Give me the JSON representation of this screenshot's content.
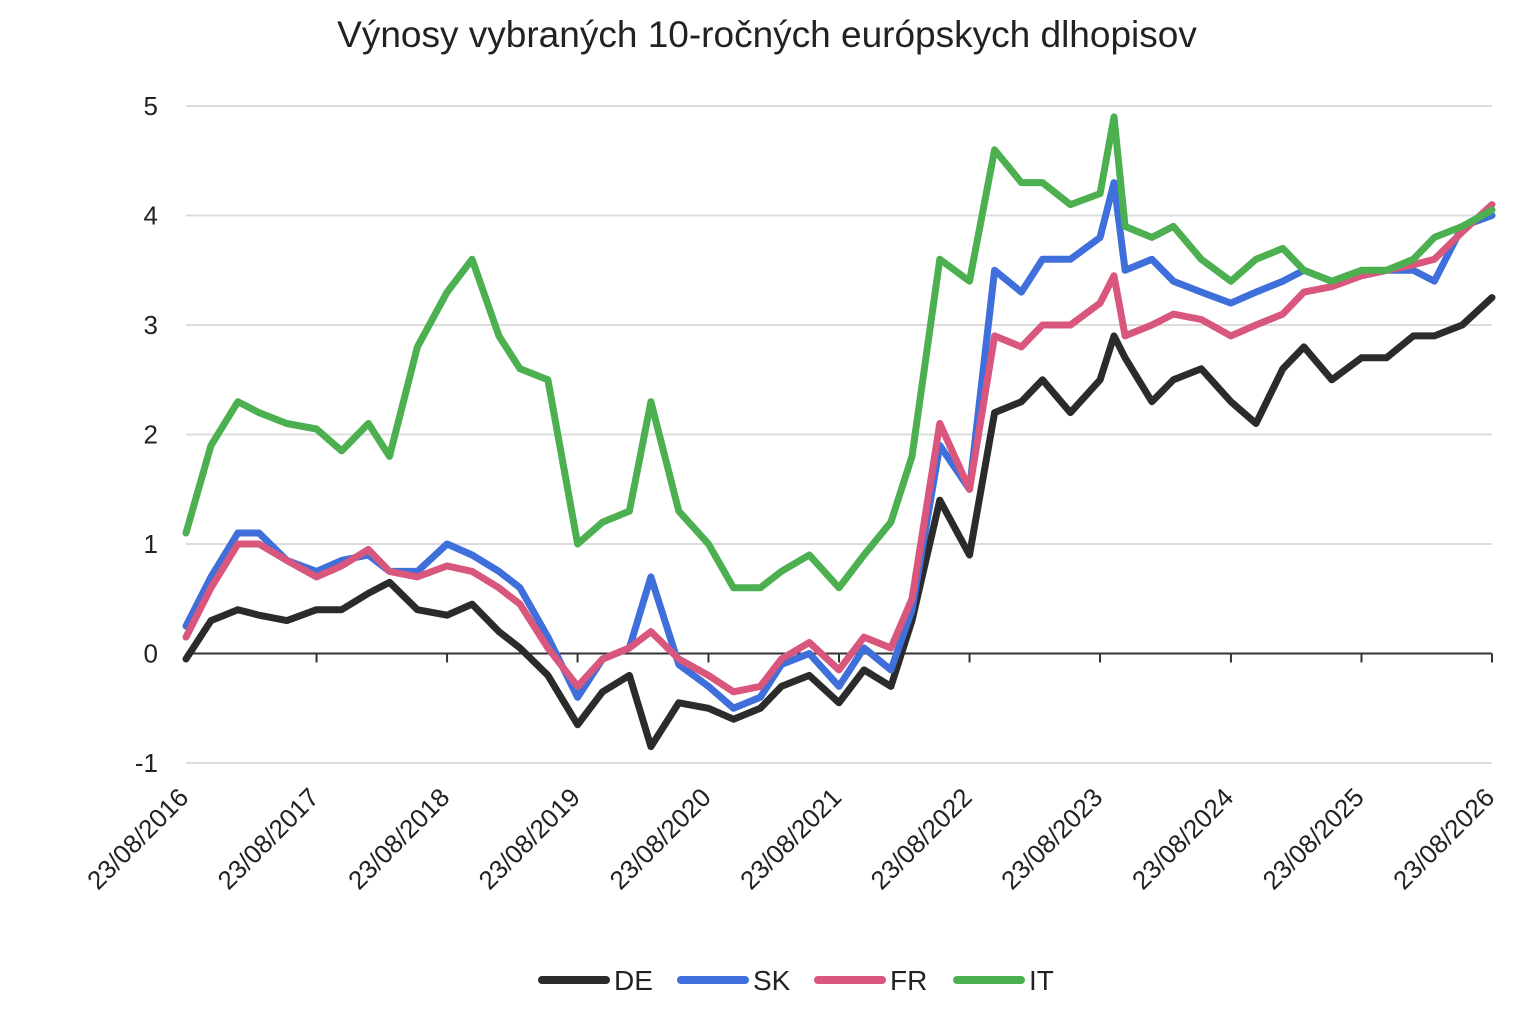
{
  "chart_data": {
    "type": "line",
    "title": "Výnosy vybraných 10-ročných európskych dlhopisov",
    "xlabel": "",
    "ylabel": "",
    "ylim": [
      -1,
      5
    ],
    "yticks": [
      -1,
      0,
      1,
      2,
      3,
      4,
      5
    ],
    "xticks": [
      "23/08/2016",
      "23/08/2017",
      "23/08/2018",
      "23/08/2019",
      "23/08/2020",
      "23/08/2021",
      "23/08/2022",
      "23/08/2023",
      "23/08/2024",
      "23/08/2025",
      "23/08/2026"
    ],
    "grid": "horizontal",
    "legend_position": "bottom",
    "x": [
      "2016-08-23",
      "2016-11-01",
      "2017-01-15",
      "2017-03-15",
      "2017-06-01",
      "2017-08-23",
      "2017-11-01",
      "2018-01-15",
      "2018-03-15",
      "2018-06-01",
      "2018-08-23",
      "2018-11-01",
      "2019-01-15",
      "2019-03-15",
      "2019-06-01",
      "2019-08-23",
      "2019-11-01",
      "2020-01-15",
      "2020-03-15",
      "2020-06-01",
      "2020-08-23",
      "2020-11-01",
      "2021-01-15",
      "2021-03-15",
      "2021-06-01",
      "2021-08-23",
      "2021-11-01",
      "2022-01-15",
      "2022-03-15",
      "2022-06-01",
      "2022-08-23",
      "2022-11-01",
      "2023-01-15",
      "2023-03-15",
      "2023-06-01",
      "2023-08-23",
      "2023-10-01",
      "2023-11-01",
      "2024-01-15",
      "2024-03-15",
      "2024-06-01",
      "2024-08-23",
      "2024-11-01",
      "2025-01-15",
      "2025-03-15",
      "2025-06-01",
      "2025-08-23",
      "2025-11-01",
      "2026-01-15",
      "2026-03-15",
      "2026-06-01",
      "2026-08-23"
    ],
    "series": [
      {
        "name": "DE",
        "color": "#2b2b2b",
        "values": [
          -0.05,
          0.3,
          0.4,
          0.35,
          0.3,
          0.4,
          0.4,
          0.55,
          0.65,
          0.4,
          0.35,
          0.45,
          0.2,
          0.05,
          -0.2,
          -0.65,
          -0.35,
          -0.2,
          -0.85,
          -0.45,
          -0.5,
          -0.6,
          -0.5,
          -0.3,
          -0.2,
          -0.45,
          -0.15,
          -0.3,
          0.3,
          1.4,
          0.9,
          2.2,
          2.3,
          2.5,
          2.2,
          2.5,
          2.9,
          2.7,
          2.3,
          2.5,
          2.6,
          2.3,
          2.1,
          2.6,
          2.8,
          2.5,
          2.7,
          2.7,
          2.9,
          2.9,
          3.0,
          3.25
        ]
      },
      {
        "name": "SK",
        "color": "#3f6fdb",
        "values": [
          0.25,
          0.7,
          1.1,
          1.1,
          0.85,
          0.75,
          0.85,
          0.9,
          0.75,
          0.75,
          1.0,
          0.9,
          0.75,
          0.6,
          0.15,
          -0.4,
          -0.05,
          0.05,
          0.7,
          -0.1,
          -0.3,
          -0.5,
          -0.4,
          -0.1,
          0.0,
          -0.3,
          0.05,
          -0.15,
          0.4,
          1.9,
          1.5,
          3.5,
          3.3,
          3.6,
          3.6,
          3.8,
          4.3,
          3.5,
          3.6,
          3.4,
          3.3,
          3.2,
          3.3,
          3.4,
          3.5,
          3.4,
          3.45,
          3.5,
          3.5,
          3.4,
          3.9,
          4.0
        ]
      },
      {
        "name": "FR",
        "color": "#d9577c",
        "values": [
          0.15,
          0.6,
          1.0,
          1.0,
          0.85,
          0.7,
          0.8,
          0.95,
          0.75,
          0.7,
          0.8,
          0.75,
          0.6,
          0.45,
          0.05,
          -0.3,
          -0.05,
          0.05,
          0.2,
          -0.05,
          -0.2,
          -0.35,
          -0.3,
          -0.05,
          0.1,
          -0.15,
          0.15,
          0.05,
          0.5,
          2.1,
          1.5,
          2.9,
          2.8,
          3.0,
          3.0,
          3.2,
          3.45,
          2.9,
          3.0,
          3.1,
          3.05,
          2.9,
          3.0,
          3.1,
          3.3,
          3.35,
          3.45,
          3.5,
          3.55,
          3.6,
          3.85,
          4.1
        ]
      },
      {
        "name": "IT",
        "color": "#4caf50",
        "values": [
          1.1,
          1.9,
          2.3,
          2.2,
          2.1,
          2.05,
          1.85,
          2.1,
          1.8,
          2.8,
          3.3,
          3.6,
          2.9,
          2.6,
          2.5,
          1.0,
          1.2,
          1.3,
          2.3,
          1.3,
          1.0,
          0.6,
          0.6,
          0.75,
          0.9,
          0.6,
          0.9,
          1.2,
          1.8,
          3.6,
          3.4,
          4.6,
          4.3,
          4.3,
          4.1,
          4.2,
          4.9,
          3.9,
          3.8,
          3.9,
          3.6,
          3.4,
          3.6,
          3.7,
          3.5,
          3.4,
          3.5,
          3.5,
          3.6,
          3.8,
          3.9,
          4.05
        ]
      }
    ]
  }
}
